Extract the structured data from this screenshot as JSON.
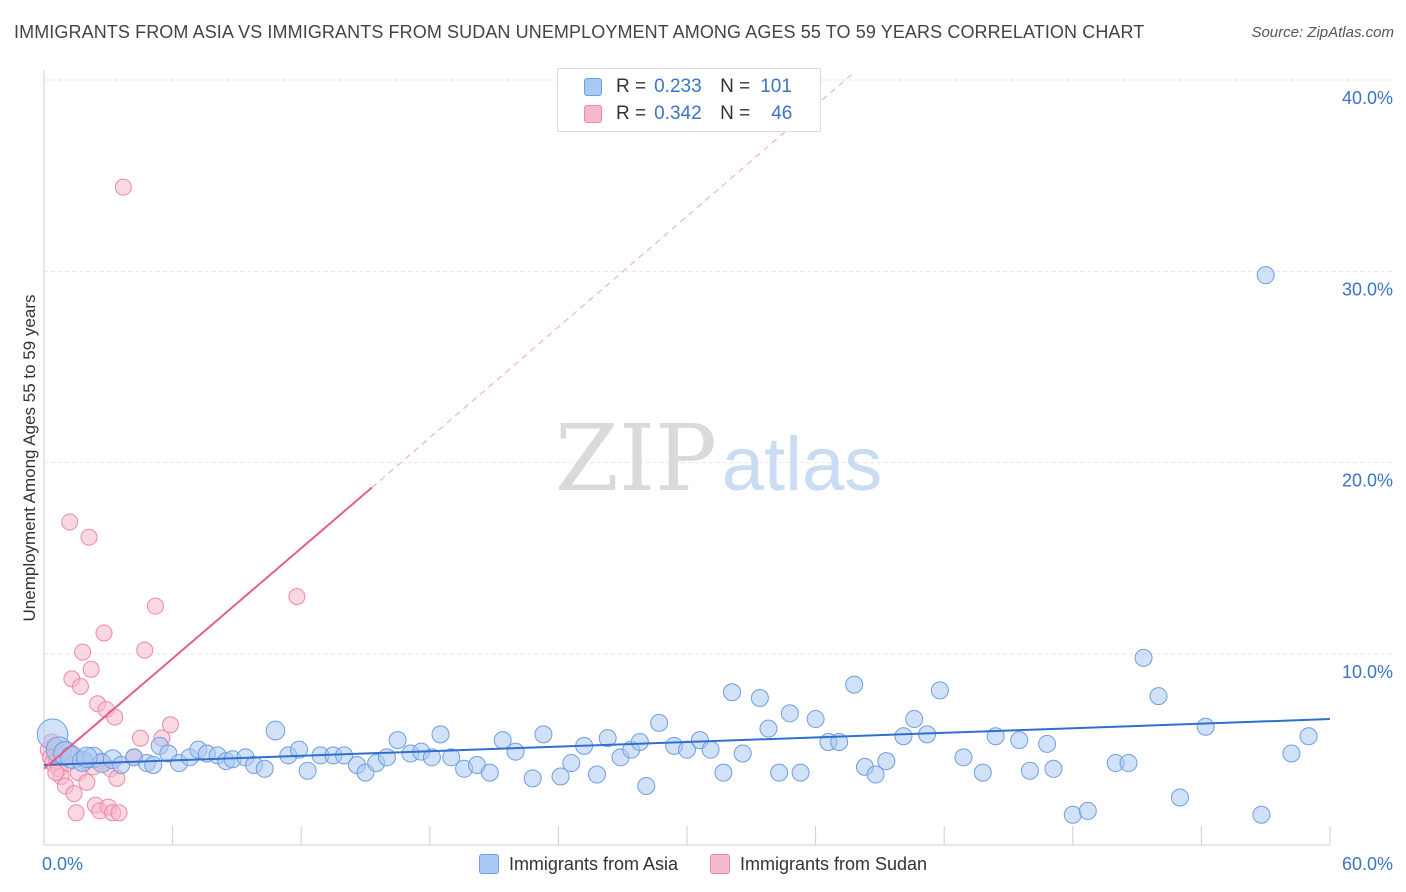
{
  "header": {
    "title": "IMMIGRANTS FROM ASIA VS IMMIGRANTS FROM SUDAN UNEMPLOYMENT AMONG AGES 55 TO 59 YEARS CORRELATION CHART",
    "source": "Source: ZipAtlas.com"
  },
  "watermark": {
    "zip": "ZIP",
    "atlas": "atlas"
  },
  "legend": {
    "rows": [
      {
        "r_label": "R =",
        "r_value": "0.233",
        "n_label": "N =",
        "n_value": "101"
      },
      {
        "r_label": "R =",
        "r_value": "0.342",
        "n_label": "N =",
        "n_value": "46"
      }
    ]
  },
  "colors": {
    "asia_fill": "#a9c9f2",
    "asia_stroke": "#6f9fe0",
    "asia_line": "#2f6fd0",
    "sudan_fill": "#f6b8cb",
    "sudan_stroke": "#ec8aa9",
    "sudan_line": "#e0608c",
    "grid": "#e6e6e6",
    "axis_text": "#3a75c4"
  },
  "chart_data": {
    "type": "scatter",
    "title": "IMMIGRANTS FROM ASIA VS IMMIGRANTS FROM SUDAN UNEMPLOYMENT AMONG AGES 55 TO 59 YEARS CORRELATION CHART",
    "xlabel": "",
    "ylabel": "Unemployment Among Ages 55 to 59 years",
    "xlim": [
      0,
      60
    ],
    "ylim": [
      0,
      42
    ],
    "x_tick_labels": [
      "0.0%",
      "60.0%"
    ],
    "y_ticks": [
      10,
      20,
      30,
      40
    ],
    "y_tick_labels": [
      "10.0%",
      "20.0%",
      "30.0%",
      "40.0%"
    ],
    "grid": true,
    "series": [
      {
        "name": "Immigrants from Asia",
        "trend": {
          "x0": 0,
          "y0": 4.2,
          "x1": 60,
          "y1": 6.6
        },
        "points": [
          [
            0.4,
            5.8,
            1.8
          ],
          [
            0.7,
            5.0,
            1.5
          ],
          [
            1.0,
            4.8,
            1.4
          ],
          [
            1.3,
            4.6,
            1.3
          ],
          [
            1.8,
            4.4,
            1.2
          ],
          [
            2.3,
            4.6,
            1.2
          ],
          [
            2.7,
            4.3,
            1.1
          ],
          [
            3.2,
            4.5,
            1.1
          ],
          [
            3.6,
            4.2,
            1.0
          ],
          [
            4.2,
            4.6,
            1.0
          ],
          [
            4.8,
            4.3,
            1.0
          ],
          [
            5.1,
            4.2,
            1.0
          ],
          [
            5.4,
            5.2,
            1.0
          ],
          [
            5.8,
            4.8,
            1.0
          ],
          [
            6.3,
            4.3,
            1.0
          ],
          [
            6.8,
            4.6,
            1.0
          ],
          [
            7.2,
            5.0,
            1.0
          ],
          [
            7.6,
            4.8,
            1.0
          ],
          [
            8.1,
            4.7,
            1.0
          ],
          [
            8.5,
            4.4,
            1.0
          ],
          [
            8.8,
            4.5,
            1.0
          ],
          [
            9.4,
            4.6,
            1.0
          ],
          [
            9.8,
            4.2,
            1.0
          ],
          [
            10.3,
            4.0,
            1.0
          ],
          [
            10.8,
            6.0,
            1.1
          ],
          [
            11.4,
            4.7,
            1.0
          ],
          [
            11.9,
            5.0,
            1.0
          ],
          [
            12.3,
            3.9,
            1.0
          ],
          [
            12.9,
            4.7,
            1.0
          ],
          [
            13.5,
            4.7,
            1.0
          ],
          [
            14.0,
            4.7,
            1.0
          ],
          [
            14.6,
            4.2,
            1.0
          ],
          [
            15.0,
            3.8,
            1.0
          ],
          [
            15.5,
            4.3,
            1.0
          ],
          [
            16.0,
            4.6,
            1.0
          ],
          [
            16.5,
            5.5,
            1.0
          ],
          [
            17.1,
            4.8,
            1.0
          ],
          [
            17.6,
            4.9,
            1.0
          ],
          [
            18.1,
            4.6,
            1.0
          ],
          [
            18.5,
            5.8,
            1.0
          ],
          [
            19.0,
            4.6,
            1.0
          ],
          [
            19.6,
            4.0,
            1.0
          ],
          [
            20.2,
            4.2,
            1.0
          ],
          [
            20.8,
            3.8,
            1.0
          ],
          [
            21.4,
            5.5,
            1.0
          ],
          [
            22.0,
            4.9,
            1.0
          ],
          [
            22.8,
            3.5,
            1.0
          ],
          [
            23.3,
            5.8,
            1.0
          ],
          [
            24.1,
            3.6,
            1.0
          ],
          [
            24.6,
            4.3,
            1.0
          ],
          [
            25.2,
            5.2,
            1.0
          ],
          [
            25.8,
            3.7,
            1.0
          ],
          [
            26.3,
            5.6,
            1.0
          ],
          [
            26.9,
            4.6,
            1.0
          ],
          [
            27.4,
            5.0,
            1.0
          ],
          [
            27.8,
            5.4,
            1.0
          ],
          [
            28.1,
            3.1,
            1.0
          ],
          [
            28.7,
            6.4,
            1.0
          ],
          [
            29.4,
            5.2,
            1.0
          ],
          [
            30.0,
            5.0,
            1.0
          ],
          [
            30.6,
            5.5,
            1.0
          ],
          [
            31.1,
            5.0,
            1.0
          ],
          [
            31.7,
            3.8,
            1.0
          ],
          [
            32.1,
            8.0,
            1.0
          ],
          [
            32.6,
            4.8,
            1.0
          ],
          [
            33.4,
            7.7,
            1.0
          ],
          [
            33.8,
            6.1,
            1.0
          ],
          [
            34.3,
            3.8,
            1.0
          ],
          [
            34.8,
            6.9,
            1.0
          ],
          [
            35.3,
            3.8,
            1.0
          ],
          [
            36.0,
            6.6,
            1.0
          ],
          [
            36.6,
            5.4,
            1.0
          ],
          [
            37.1,
            5.4,
            1.0
          ],
          [
            37.8,
            8.4,
            1.0
          ],
          [
            38.3,
            4.1,
            1.0
          ],
          [
            38.8,
            3.7,
            1.0
          ],
          [
            39.3,
            4.4,
            1.0
          ],
          [
            40.1,
            5.7,
            1.0
          ],
          [
            40.6,
            6.6,
            1.0
          ],
          [
            41.2,
            5.8,
            1.0
          ],
          [
            41.8,
            8.1,
            1.0
          ],
          [
            42.9,
            4.6,
            1.0
          ],
          [
            43.8,
            3.8,
            1.0
          ],
          [
            44.4,
            5.7,
            1.0
          ],
          [
            45.5,
            5.5,
            1.0
          ],
          [
            46.0,
            3.9,
            1.0
          ],
          [
            46.8,
            5.3,
            1.0
          ],
          [
            47.1,
            4.0,
            1.0
          ],
          [
            48.0,
            1.6,
            1.0
          ],
          [
            48.7,
            1.8,
            1.0
          ],
          [
            50.0,
            4.3,
            1.0
          ],
          [
            50.6,
            4.3,
            1.0
          ],
          [
            51.3,
            9.8,
            1.0
          ],
          [
            52.0,
            7.8,
            1.0
          ],
          [
            53.0,
            2.5,
            1.0
          ],
          [
            54.2,
            6.2,
            1.0
          ],
          [
            56.8,
            1.6,
            1.0
          ],
          [
            57.0,
            29.8,
            1.0
          ],
          [
            58.2,
            4.8,
            1.0
          ],
          [
            59.0,
            5.7,
            1.0
          ],
          [
            2.0,
            4.6,
            1.2
          ]
        ]
      },
      {
        "name": "Immigrants from Sudan",
        "trend": {
          "x0": 0,
          "y0": 4.0,
          "x1": 15.3,
          "y1": 18.7,
          "dash_x1": 37.8,
          "dash_y1": 40.4
        },
        "points": [
          [
            0.2,
            5.0
          ],
          [
            0.3,
            4.6
          ],
          [
            0.4,
            4.3
          ],
          [
            0.5,
            5.2
          ],
          [
            0.6,
            4.4
          ],
          [
            0.7,
            4.0
          ],
          [
            0.8,
            3.6
          ],
          [
            0.9,
            4.7
          ],
          [
            1.0,
            3.1
          ],
          [
            1.1,
            4.3
          ],
          [
            1.2,
            16.9
          ],
          [
            1.3,
            8.7
          ],
          [
            1.4,
            2.7
          ],
          [
            1.5,
            1.7
          ],
          [
            1.6,
            3.8
          ],
          [
            1.7,
            8.3
          ],
          [
            1.8,
            10.1
          ],
          [
            1.9,
            4.4
          ],
          [
            2.0,
            3.3
          ],
          [
            2.1,
            16.1
          ],
          [
            2.2,
            9.2
          ],
          [
            2.3,
            4.1
          ],
          [
            2.4,
            2.1
          ],
          [
            2.5,
            7.4
          ],
          [
            2.6,
            1.8
          ],
          [
            2.7,
            4.4
          ],
          [
            2.8,
            11.1
          ],
          [
            2.9,
            7.1
          ],
          [
            3.0,
            2.0
          ],
          [
            3.1,
            4.0
          ],
          [
            3.2,
            1.7
          ],
          [
            3.3,
            6.7
          ],
          [
            3.4,
            3.5
          ],
          [
            3.5,
            1.7
          ],
          [
            3.7,
            34.4
          ],
          [
            4.2,
            4.6
          ],
          [
            4.5,
            5.6
          ],
          [
            4.7,
            10.2
          ],
          [
            5.2,
            12.5
          ],
          [
            5.5,
            5.6
          ],
          [
            5.9,
            6.3
          ],
          [
            11.8,
            13.0
          ],
          [
            0.35,
            5.4
          ],
          [
            0.55,
            3.8
          ],
          [
            0.9,
            5.0
          ],
          [
            1.3,
            4.8
          ]
        ]
      }
    ]
  },
  "bottom_legend": {
    "asia_label": "Immigrants from Asia",
    "sudan_label": "Immigrants from Sudan"
  }
}
